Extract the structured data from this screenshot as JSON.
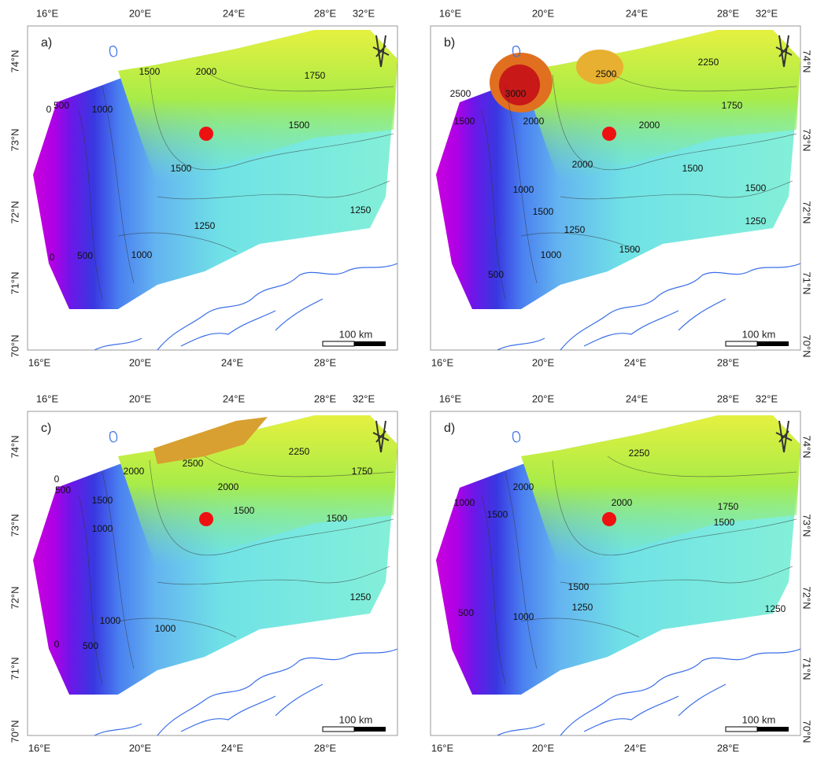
{
  "panels": [
    {
      "label": "a)",
      "top_ticks": [
        "16°E",
        "20°E",
        "24°E",
        "28°E",
        "32°E"
      ],
      "bottom_ticks": [
        "16°E",
        "20°E",
        "24°E",
        "28°E"
      ],
      "lat_ticks": [
        "74°N",
        "73°N",
        "72°N",
        "71°N",
        "70°N"
      ],
      "contour_labels": [
        "2000",
        "1750",
        "1500",
        "1000",
        "500",
        "0",
        "1500",
        "1500",
        "1250",
        "1250",
        "500",
        "1000",
        "0"
      ],
      "scale_label": "100 km"
    },
    {
      "label": "b)",
      "top_ticks": [
        "16°E",
        "20°E",
        "24°E",
        "28°E",
        "32°E"
      ],
      "bottom_ticks": [
        "16°E",
        "20°E",
        "24°E",
        "28°E"
      ],
      "lat_ticks": [
        "74°N",
        "73°N",
        "72°N",
        "71°N",
        "70°N"
      ],
      "contour_labels": [
        "2500",
        "2250",
        "3000",
        "2500",
        "1500",
        "2000",
        "2000",
        "1750",
        "2000",
        "1000",
        "1500",
        "1500",
        "1500",
        "1250",
        "1250",
        "1000",
        "1500",
        "500"
      ],
      "scale_label": "100 km"
    },
    {
      "label": "c)",
      "top_ticks": [
        "16°E",
        "20°E",
        "24°E",
        "28°E",
        "32°E"
      ],
      "bottom_ticks": [
        "16°E",
        "20°E",
        "24°E",
        "28°E"
      ],
      "lat_ticks": [
        "74°N",
        "73°N",
        "72°N",
        "71°N",
        "70°N"
      ],
      "contour_labels": [
        "2500",
        "2250",
        "1750",
        "2000",
        "2000",
        "1500",
        "1000",
        "500",
        "0",
        "1500",
        "1500",
        "1250",
        "1000",
        "1000",
        "500",
        "0"
      ],
      "scale_label": "100 km"
    },
    {
      "label": "d)",
      "top_ticks": [
        "16°E",
        "20°E",
        "24°E",
        "28°E",
        "32°E"
      ],
      "bottom_ticks": [
        "16°E",
        "20°E",
        "24°E",
        "28°E"
      ],
      "lat_ticks": [
        "74°N",
        "73°N",
        "72°N",
        "71°N",
        "70°N"
      ],
      "contour_labels": [
        "2250",
        "2000",
        "2000",
        "1750",
        "1500",
        "1500",
        "1000",
        "1500",
        "1250",
        "1250",
        "1000",
        "500"
      ],
      "scale_label": "100 km"
    }
  ]
}
